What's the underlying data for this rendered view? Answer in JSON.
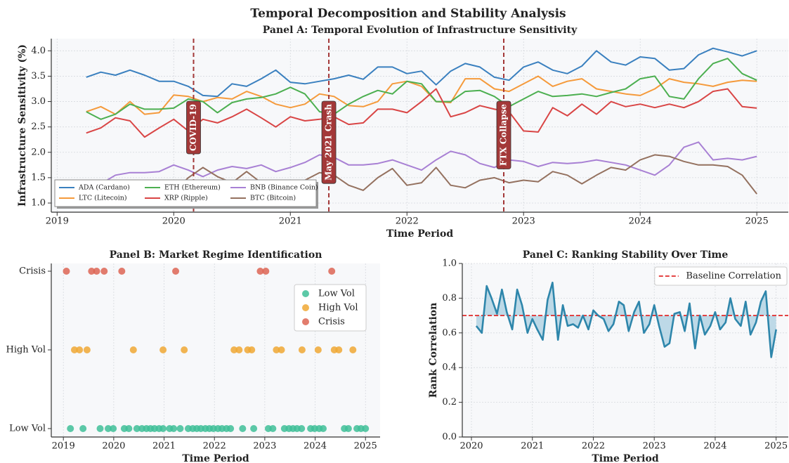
{
  "title": "Temporal Decomposition and Stability Analysis",
  "chart_data": [
    {
      "type": "line",
      "title": "Panel A: Temporal Evolution of Infrastructure Sensitivity",
      "x_label": "Time Period",
      "y_label": "Infrastructure Sensitivity (%)",
      "x": [
        2019.25,
        2019.375,
        2019.5,
        2019.625,
        2019.75,
        2019.875,
        2020.0,
        2020.125,
        2020.25,
        2020.375,
        2020.5,
        2020.625,
        2020.75,
        2020.875,
        2021.0,
        2021.125,
        2021.25,
        2021.375,
        2021.5,
        2021.625,
        2021.75,
        2021.875,
        2022.0,
        2022.125,
        2022.25,
        2022.375,
        2022.5,
        2022.625,
        2022.75,
        2022.875,
        2023.0,
        2023.125,
        2023.25,
        2023.375,
        2023.5,
        2023.625,
        2023.75,
        2023.875,
        2024.0,
        2024.125,
        2024.25,
        2024.375,
        2024.5,
        2024.625,
        2024.75,
        2024.875,
        2025.0
      ],
      "series": [
        {
          "name": "ADA (Cardano)",
          "color": "#3a80bf",
          "values": [
            3.48,
            3.58,
            3.52,
            3.62,
            3.52,
            3.4,
            3.4,
            3.3,
            3.12,
            3.1,
            3.35,
            3.3,
            3.45,
            3.62,
            3.38,
            3.35,
            3.4,
            3.45,
            3.52,
            3.44,
            3.68,
            3.68,
            3.55,
            3.6,
            3.33,
            3.6,
            3.75,
            3.68,
            3.48,
            3.42,
            3.68,
            3.78,
            3.62,
            3.55,
            3.7,
            4.0,
            3.78,
            3.72,
            3.88,
            3.85,
            3.62,
            3.65,
            3.92,
            4.05,
            3.98,
            3.9,
            4.0
          ]
        },
        {
          "name": "LTC (Litecoin)",
          "color": "#f59a3b",
          "values": [
            2.8,
            2.9,
            2.75,
            3.0,
            2.75,
            2.78,
            3.13,
            3.1,
            3.0,
            3.08,
            3.05,
            3.2,
            3.1,
            2.95,
            2.88,
            2.95,
            3.15,
            3.1,
            2.92,
            2.9,
            3.0,
            3.35,
            3.4,
            3.3,
            3.0,
            2.98,
            3.45,
            3.45,
            3.25,
            3.2,
            3.35,
            3.5,
            3.3,
            3.4,
            3.45,
            3.25,
            3.2,
            3.15,
            3.12,
            3.25,
            3.45,
            3.38,
            3.35,
            3.3,
            3.38,
            3.42,
            3.4
          ]
        },
        {
          "name": "ETH (Ethereum)",
          "color": "#4caf50",
          "values": [
            2.8,
            2.65,
            2.75,
            2.95,
            2.85,
            2.85,
            2.87,
            3.05,
            3.0,
            2.78,
            2.98,
            3.05,
            3.08,
            3.15,
            3.28,
            3.15,
            2.8,
            2.75,
            2.95,
            3.1,
            3.22,
            3.15,
            3.4,
            3.35,
            3.0,
            3.0,
            3.2,
            3.22,
            3.1,
            2.9,
            3.05,
            3.2,
            3.1,
            3.12,
            3.15,
            3.1,
            3.18,
            3.25,
            3.45,
            3.5,
            3.1,
            3.05,
            3.45,
            3.75,
            3.85,
            3.55,
            3.42
          ]
        },
        {
          "name": "XRP (Ripple)",
          "color": "#d94545",
          "values": [
            2.38,
            2.48,
            2.68,
            2.62,
            2.3,
            2.48,
            2.65,
            2.42,
            2.65,
            2.58,
            2.7,
            2.85,
            2.68,
            2.5,
            2.7,
            2.62,
            2.65,
            2.7,
            2.55,
            2.58,
            2.85,
            2.85,
            2.78,
            3.0,
            3.25,
            2.7,
            2.78,
            2.92,
            2.85,
            2.8,
            2.42,
            2.4,
            2.88,
            2.72,
            2.95,
            2.75,
            3.0,
            2.9,
            2.95,
            2.88,
            2.95,
            2.88,
            3.0,
            3.2,
            3.25,
            2.9,
            2.87
          ]
        },
        {
          "name": "BNB (Binance Coin)",
          "color": "#a880d4",
          "values": [
            1.45,
            1.38,
            1.55,
            1.6,
            1.6,
            1.62,
            1.75,
            1.65,
            1.52,
            1.65,
            1.72,
            1.68,
            1.75,
            1.62,
            1.7,
            1.8,
            1.95,
            1.9,
            1.75,
            1.75,
            1.78,
            1.85,
            1.75,
            1.65,
            1.85,
            2.02,
            1.95,
            1.78,
            1.7,
            1.85,
            1.82,
            1.72,
            1.8,
            1.78,
            1.8,
            1.85,
            1.8,
            1.75,
            1.65,
            1.55,
            1.75,
            2.1,
            2.2,
            1.85,
            1.88,
            1.85,
            1.92
          ]
        },
        {
          "name": "BTC (Bitcoin)",
          "color": "#94715f",
          "values": [
            1.38,
            1.4,
            1.3,
            1.25,
            1.2,
            1.2,
            1.22,
            1.5,
            1.7,
            1.52,
            1.4,
            1.62,
            1.4,
            1.2,
            1.25,
            1.45,
            1.6,
            1.55,
            1.35,
            1.25,
            1.5,
            1.68,
            1.35,
            1.4,
            1.7,
            1.35,
            1.3,
            1.45,
            1.5,
            1.4,
            1.45,
            1.42,
            1.62,
            1.55,
            1.38,
            1.55,
            1.7,
            1.65,
            1.85,
            1.95,
            1.92,
            1.82,
            1.75,
            1.75,
            1.72,
            1.55,
            1.18
          ]
        }
      ],
      "events": [
        {
          "x": 2020.17,
          "label": "COVID-19"
        },
        {
          "x": 2021.33,
          "label": "May 2021 Crash"
        },
        {
          "x": 2022.83,
          "label": "FTX Collapse"
        }
      ],
      "event_color": "#a33838",
      "xlim": [
        2018.95,
        2025.27
      ],
      "xticks": [
        2019,
        2020,
        2021,
        2022,
        2023,
        2024,
        2025
      ],
      "ylim": [
        0.82,
        4.24
      ],
      "yticks": [
        {
          "value": 1,
          "label": "1.0"
        },
        1.5,
        {
          "value": 2,
          "label": "2.0"
        },
        2.5,
        {
          "value": 3,
          "label": "3.0"
        },
        3.5,
        {
          "value": 4,
          "label": "4.0"
        }
      ],
      "grid": true,
      "legend": "lower left",
      "legend_columns": 3
    },
    {
      "type": "scatter",
      "title": "Panel B: Market Regime Identification",
      "x_label": "Time Period",
      "y_categories": [
        "Low Vol",
        "High Vol",
        "Crisis"
      ],
      "series": [
        {
          "name": "Low Vol",
          "color": "#3fbf98",
          "x": [
            2019.14,
            2019.39,
            2019.73,
            2019.89,
            2019.99,
            2020.21,
            2020.3,
            2020.46,
            2020.56,
            2020.65,
            2020.73,
            2020.81,
            2020.9,
            2020.98,
            2021.11,
            2021.19,
            2021.32,
            2021.48,
            2021.57,
            2021.65,
            2021.73,
            2021.82,
            2021.9,
            2021.98,
            2022.07,
            2022.15,
            2022.24,
            2022.32,
            2022.56,
            2022.78,
            2023.07,
            2023.16,
            2023.39,
            2023.48,
            2023.56,
            2023.64,
            2023.73,
            2023.91,
            2023.99,
            2024.08,
            2024.16,
            2024.58,
            2024.66,
            2024.83,
            2024.91,
            2025.0
          ]
        },
        {
          "name": "High Vol",
          "color": "#f0a834",
          "x": [
            2019.22,
            2019.32,
            2019.47,
            2020.39,
            2020.98,
            2021.4,
            2022.39,
            2022.49,
            2022.66,
            2022.74,
            2023.23,
            2023.33,
            2023.74,
            2024.06,
            2024.38,
            2024.47,
            2024.75
          ]
        },
        {
          "name": "Crisis",
          "color": "#dd6553",
          "x": [
            2019.06,
            2019.56,
            2019.66,
            2019.81,
            2020.16,
            2021.23,
            2022.91,
            2023.02,
            2024.33
          ]
        }
      ],
      "xlim": [
        2018.76,
        2025.29
      ],
      "xticks": [
        2019,
        2020,
        2021,
        2022,
        2023,
        2024,
        2025
      ],
      "grid": true,
      "legend": "upper right"
    },
    {
      "type": "line",
      "title": "Panel C: Ranking Stability Over Time",
      "x_label": "Time Period",
      "y_label": "Rank Correlation",
      "x": [
        2020.08,
        2020.17,
        2020.25,
        2020.33,
        2020.42,
        2020.5,
        2020.58,
        2020.67,
        2020.75,
        2020.83,
        2020.92,
        2021.0,
        2021.08,
        2021.17,
        2021.25,
        2021.33,
        2021.42,
        2021.5,
        2021.58,
        2021.67,
        2021.75,
        2021.83,
        2021.92,
        2022.0,
        2022.08,
        2022.17,
        2022.25,
        2022.33,
        2022.42,
        2022.5,
        2022.58,
        2022.67,
        2022.75,
        2022.83,
        2022.92,
        2023.0,
        2023.08,
        2023.17,
        2023.25,
        2023.33,
        2023.42,
        2023.5,
        2023.58,
        2023.67,
        2023.75,
        2023.83,
        2023.92,
        2024.0,
        2024.08,
        2024.17,
        2024.25,
        2024.33,
        2024.42,
        2024.5,
        2024.58,
        2024.67,
        2024.75,
        2024.83,
        2024.92,
        2025.0
      ],
      "values": [
        0.64,
        0.6,
        0.87,
        0.8,
        0.71,
        0.85,
        0.72,
        0.62,
        0.85,
        0.76,
        0.6,
        0.68,
        0.62,
        0.56,
        0.79,
        0.89,
        0.56,
        0.76,
        0.64,
        0.65,
        0.63,
        0.7,
        0.62,
        0.73,
        0.7,
        0.68,
        0.61,
        0.65,
        0.78,
        0.76,
        0.61,
        0.72,
        0.78,
        0.6,
        0.65,
        0.76,
        0.64,
        0.52,
        0.54,
        0.71,
        0.72,
        0.61,
        0.77,
        0.51,
        0.7,
        0.59,
        0.64,
        0.72,
        0.62,
        0.66,
        0.8,
        0.68,
        0.64,
        0.78,
        0.59,
        0.66,
        0.78,
        0.84,
        0.46,
        0.62
      ],
      "color": "#2e86ab",
      "fill_color": "#a9cfe0",
      "baseline": {
        "name": "Baseline Correlation",
        "value": 0.7,
        "color": "#e02b2b"
      },
      "xlim": [
        2019.85,
        2025.2
      ],
      "xticks": [
        2020,
        2021,
        2022,
        2023,
        2024,
        2025
      ],
      "ylim": [
        0,
        1
      ],
      "yticks": [
        {
          "value": 0,
          "label": "0.0"
        },
        0.2,
        0.4,
        0.6,
        0.8,
        {
          "value": 1,
          "label": "1.0"
        }
      ],
      "grid": true,
      "legend": "upper right"
    }
  ]
}
